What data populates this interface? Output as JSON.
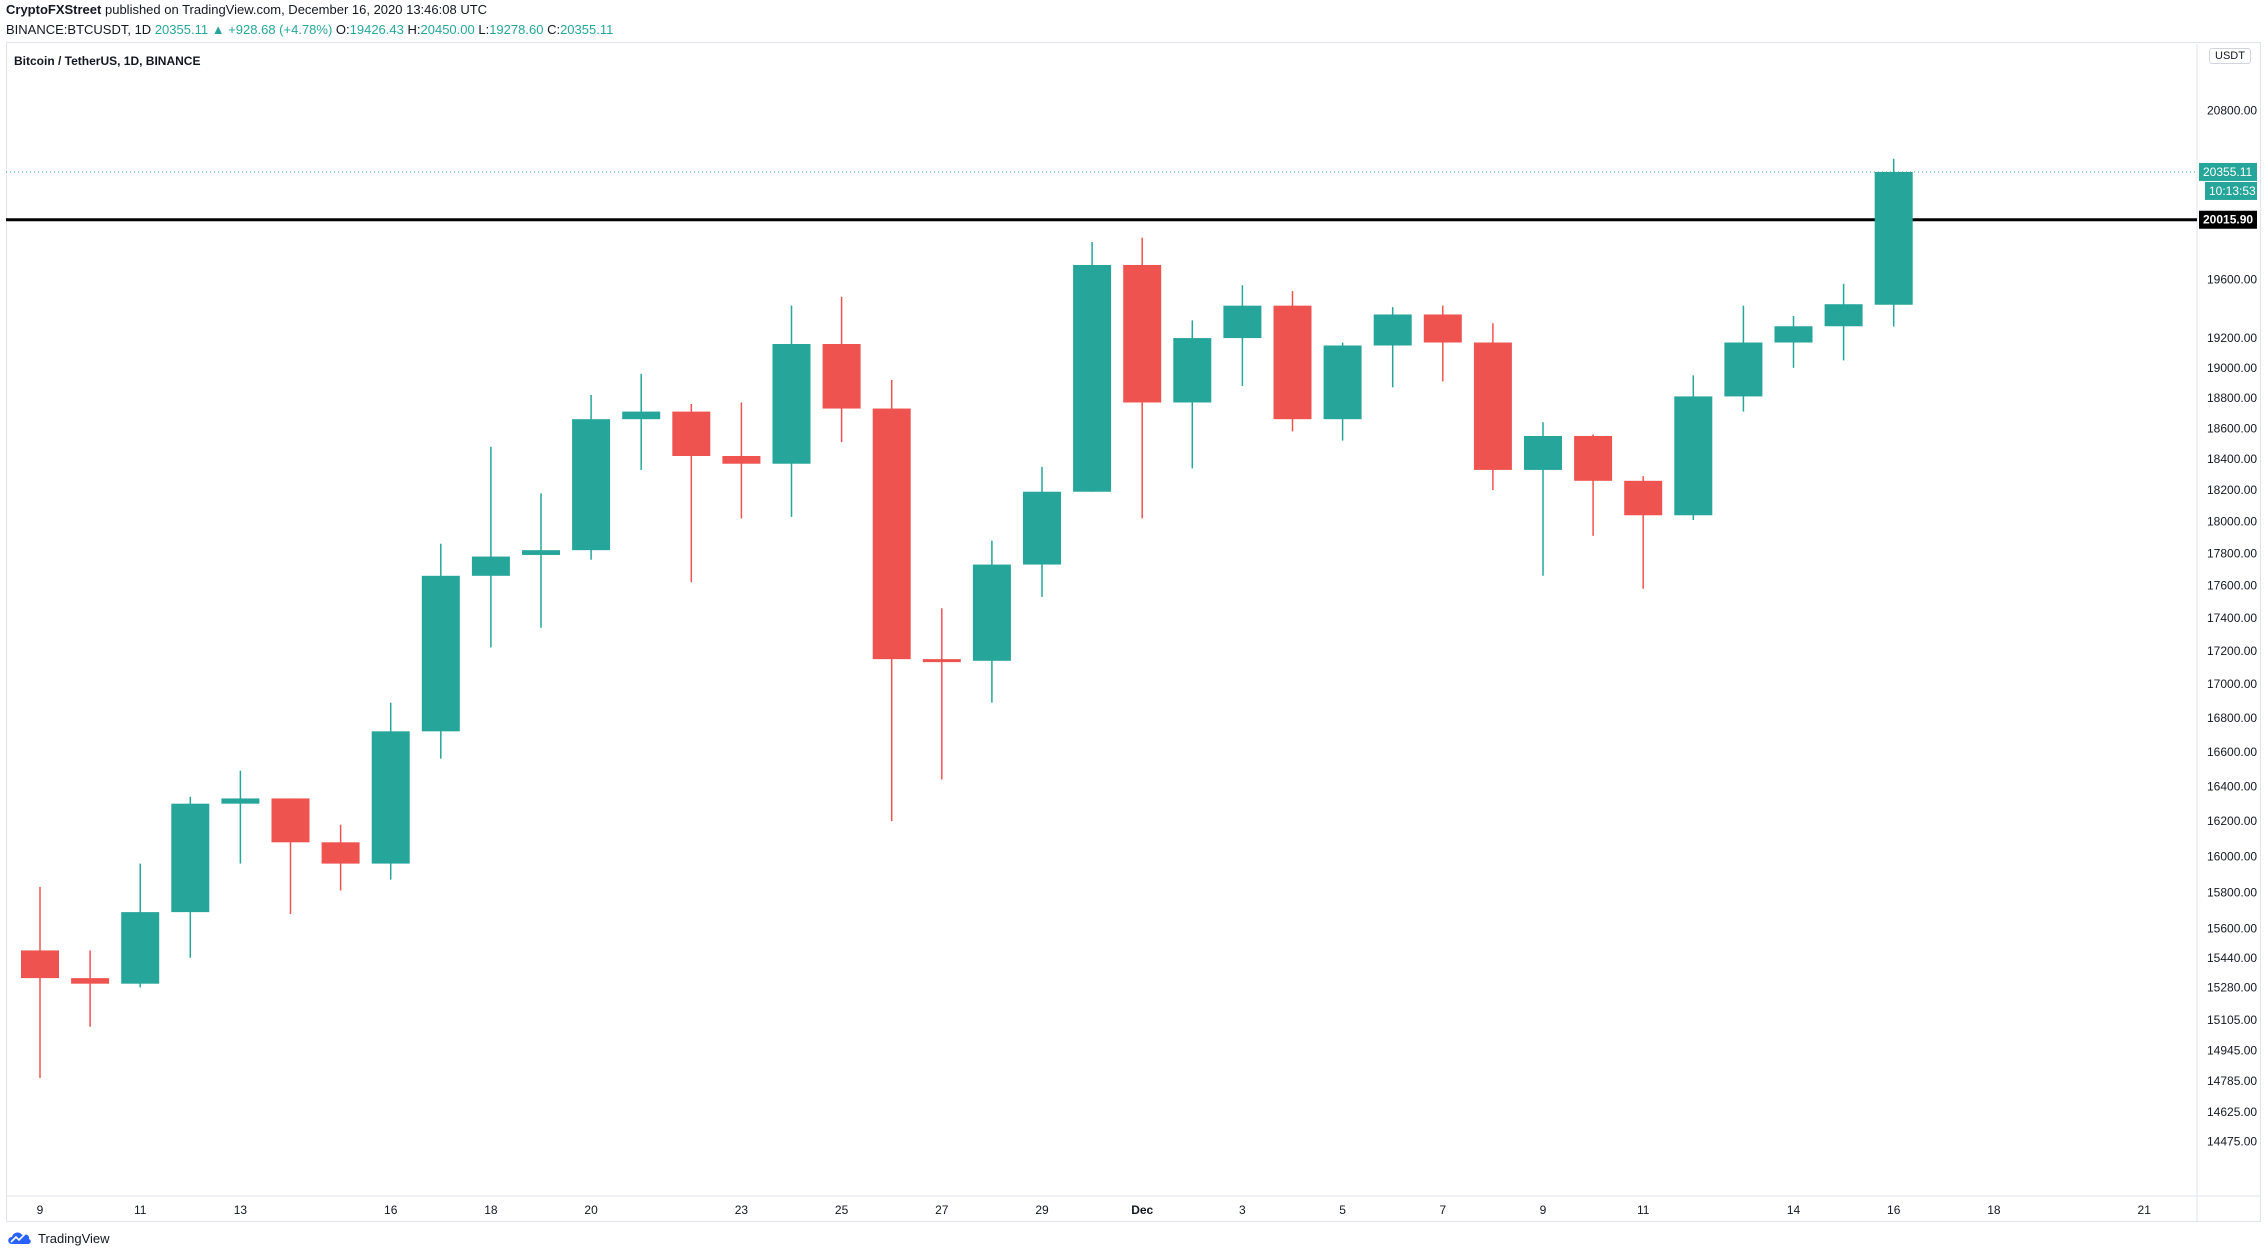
{
  "header": {
    "publisher": "CryptoFXStreet",
    "published_text": "published on TradingView.com, December 16, 2020 13:46:08 UTC",
    "symbol_line": "BINANCE:BTCUSDT, 1D",
    "last": "20355.11",
    "change": "▲ +928.68 (+4.78%)",
    "o_label": "O:",
    "o_value": "19426.43",
    "h_label": "H:",
    "h_value": "20450.00",
    "l_label": "L:",
    "l_value": "19278.60",
    "c_label": "C:",
    "c_value": "20355.11"
  },
  "legend_title": "Bitcoin / TetherUS, 1D, BINANCE",
  "currency": "USDT",
  "footer_brand": "TradingView",
  "colors": {
    "up": "#26a69a",
    "down": "#ef5350",
    "level_line": "#000000",
    "price_line": "#26a69a"
  },
  "price_badge": {
    "value": "20355.11",
    "countdown": "10:13:53"
  },
  "level_badge": "20015.90",
  "chart_data": {
    "type": "candlestick",
    "title": "Bitcoin / TetherUS, 1D, BINANCE",
    "scale": "log",
    "ylim": [
      14400,
      21300
    ],
    "yticks": [
      "20800.00",
      "19600.00",
      "19200.00",
      "19000.00",
      "18800.00",
      "18600.00",
      "18400.00",
      "18200.00",
      "18000.00",
      "17800.00",
      "17600.00",
      "17400.00",
      "17200.00",
      "17000.00",
      "16800.00",
      "16600.00",
      "16400.00",
      "16200.00",
      "16000.00",
      "15800.00",
      "15600.00",
      "15440.00",
      "15280.00",
      "15105.00",
      "14945.00",
      "14785.00",
      "14625.00",
      "14475.00"
    ],
    "xticks": [
      {
        "label": "9",
        "date": "2020-11-09"
      },
      {
        "label": "11",
        "date": "2020-11-11"
      },
      {
        "label": "13",
        "date": "2020-11-13"
      },
      {
        "label": "16",
        "date": "2020-11-16"
      },
      {
        "label": "18",
        "date": "2020-11-18"
      },
      {
        "label": "20",
        "date": "2020-11-20"
      },
      {
        "label": "23",
        "date": "2020-11-23"
      },
      {
        "label": "25",
        "date": "2020-11-25"
      },
      {
        "label": "27",
        "date": "2020-11-27"
      },
      {
        "label": "29",
        "date": "2020-11-29"
      },
      {
        "label": "Dec",
        "date": "2020-12-01"
      },
      {
        "label": "3",
        "date": "2020-12-03"
      },
      {
        "label": "5",
        "date": "2020-12-05"
      },
      {
        "label": "7",
        "date": "2020-12-07"
      },
      {
        "label": "9",
        "date": "2020-12-09"
      },
      {
        "label": "11",
        "date": "2020-12-11"
      },
      {
        "label": "14",
        "date": "2020-12-14"
      },
      {
        "label": "16",
        "date": "2020-12-16"
      },
      {
        "label": "18",
        "date": "2020-12-18"
      },
      {
        "label": "21",
        "date": "2020-12-21"
      }
    ],
    "horizontal_level": 20015.9,
    "last_price": 20355.11,
    "candles": [
      {
        "date": "2020-11-09",
        "o": 15480,
        "h": 15830,
        "l": 14800,
        "c": 15330
      },
      {
        "date": "2020-11-10",
        "o": 15330,
        "h": 15480,
        "l": 15070,
        "c": 15300
      },
      {
        "date": "2020-11-11",
        "o": 15300,
        "h": 15960,
        "l": 15280,
        "c": 15690
      },
      {
        "date": "2020-11-12",
        "o": 15690,
        "h": 16340,
        "l": 15440,
        "c": 16300
      },
      {
        "date": "2020-11-13",
        "o": 16300,
        "h": 16490,
        "l": 15960,
        "c": 16330
      },
      {
        "date": "2020-11-14",
        "o": 16330,
        "h": 16330,
        "l": 15680,
        "c": 16080
      },
      {
        "date": "2020-11-15",
        "o": 16080,
        "h": 16180,
        "l": 15810,
        "c": 15960
      },
      {
        "date": "2020-11-16",
        "o": 15960,
        "h": 16890,
        "l": 15870,
        "c": 16720
      },
      {
        "date": "2020-11-17",
        "o": 16720,
        "h": 17860,
        "l": 16560,
        "c": 17660
      },
      {
        "date": "2020-11-18",
        "o": 17660,
        "h": 18480,
        "l": 17220,
        "c": 17780
      },
      {
        "date": "2020-11-19",
        "o": 17790,
        "h": 18180,
        "l": 17340,
        "c": 17820
      },
      {
        "date": "2020-11-20",
        "o": 17820,
        "h": 18820,
        "l": 17760,
        "c": 18660
      },
      {
        "date": "2020-11-21",
        "o": 18660,
        "h": 18960,
        "l": 18330,
        "c": 18710
      },
      {
        "date": "2020-11-22",
        "o": 18710,
        "h": 18760,
        "l": 17620,
        "c": 18420
      },
      {
        "date": "2020-11-23",
        "o": 18420,
        "h": 18770,
        "l": 18020,
        "c": 18370
      },
      {
        "date": "2020-11-24",
        "o": 18370,
        "h": 19420,
        "l": 18030,
        "c": 19160
      },
      {
        "date": "2020-11-25",
        "o": 19160,
        "h": 19480,
        "l": 18510,
        "c": 18730
      },
      {
        "date": "2020-11-26",
        "o": 18730,
        "h": 18920,
        "l": 16200,
        "c": 17150
      },
      {
        "date": "2020-11-27",
        "o": 17150,
        "h": 17460,
        "l": 16440,
        "c": 17140
      },
      {
        "date": "2020-11-28",
        "o": 17140,
        "h": 17880,
        "l": 16890,
        "c": 17730
      },
      {
        "date": "2020-11-29",
        "o": 17730,
        "h": 18350,
        "l": 17530,
        "c": 18190
      },
      {
        "date": "2020-11-30",
        "o": 18190,
        "h": 19860,
        "l": 18190,
        "c": 19700
      },
      {
        "date": "2020-12-01",
        "o": 19700,
        "h": 19890,
        "l": 18020,
        "c": 18770
      },
      {
        "date": "2020-12-02",
        "o": 18770,
        "h": 19320,
        "l": 18340,
        "c": 19200
      },
      {
        "date": "2020-12-03",
        "o": 19200,
        "h": 19560,
        "l": 18880,
        "c": 19420
      },
      {
        "date": "2020-12-04",
        "o": 19420,
        "h": 19520,
        "l": 18580,
        "c": 18660
      },
      {
        "date": "2020-12-05",
        "o": 18660,
        "h": 19170,
        "l": 18520,
        "c": 19150
      },
      {
        "date": "2020-12-06",
        "o": 19150,
        "h": 19410,
        "l": 18870,
        "c": 19360
      },
      {
        "date": "2020-12-07",
        "o": 19360,
        "h": 19420,
        "l": 18910,
        "c": 19170
      },
      {
        "date": "2020-12-08",
        "o": 19170,
        "h": 19300,
        "l": 18200,
        "c": 18330
      },
      {
        "date": "2020-12-09",
        "o": 18330,
        "h": 18640,
        "l": 17660,
        "c": 18550
      },
      {
        "date": "2020-12-10",
        "o": 18550,
        "h": 18560,
        "l": 17910,
        "c": 18260
      },
      {
        "date": "2020-12-11",
        "o": 18260,
        "h": 18290,
        "l": 17580,
        "c": 18040
      },
      {
        "date": "2020-12-12",
        "o": 18040,
        "h": 18950,
        "l": 18010,
        "c": 18810
      },
      {
        "date": "2020-12-13",
        "o": 18810,
        "h": 19420,
        "l": 18710,
        "c": 19170
      },
      {
        "date": "2020-12-14",
        "o": 19170,
        "h": 19350,
        "l": 19000,
        "c": 19280
      },
      {
        "date": "2020-12-15",
        "o": 19280,
        "h": 19570,
        "l": 19050,
        "c": 19430
      },
      {
        "date": "2020-12-16",
        "o": 19426.43,
        "h": 20450.0,
        "l": 19278.6,
        "c": 20355.11
      }
    ]
  }
}
